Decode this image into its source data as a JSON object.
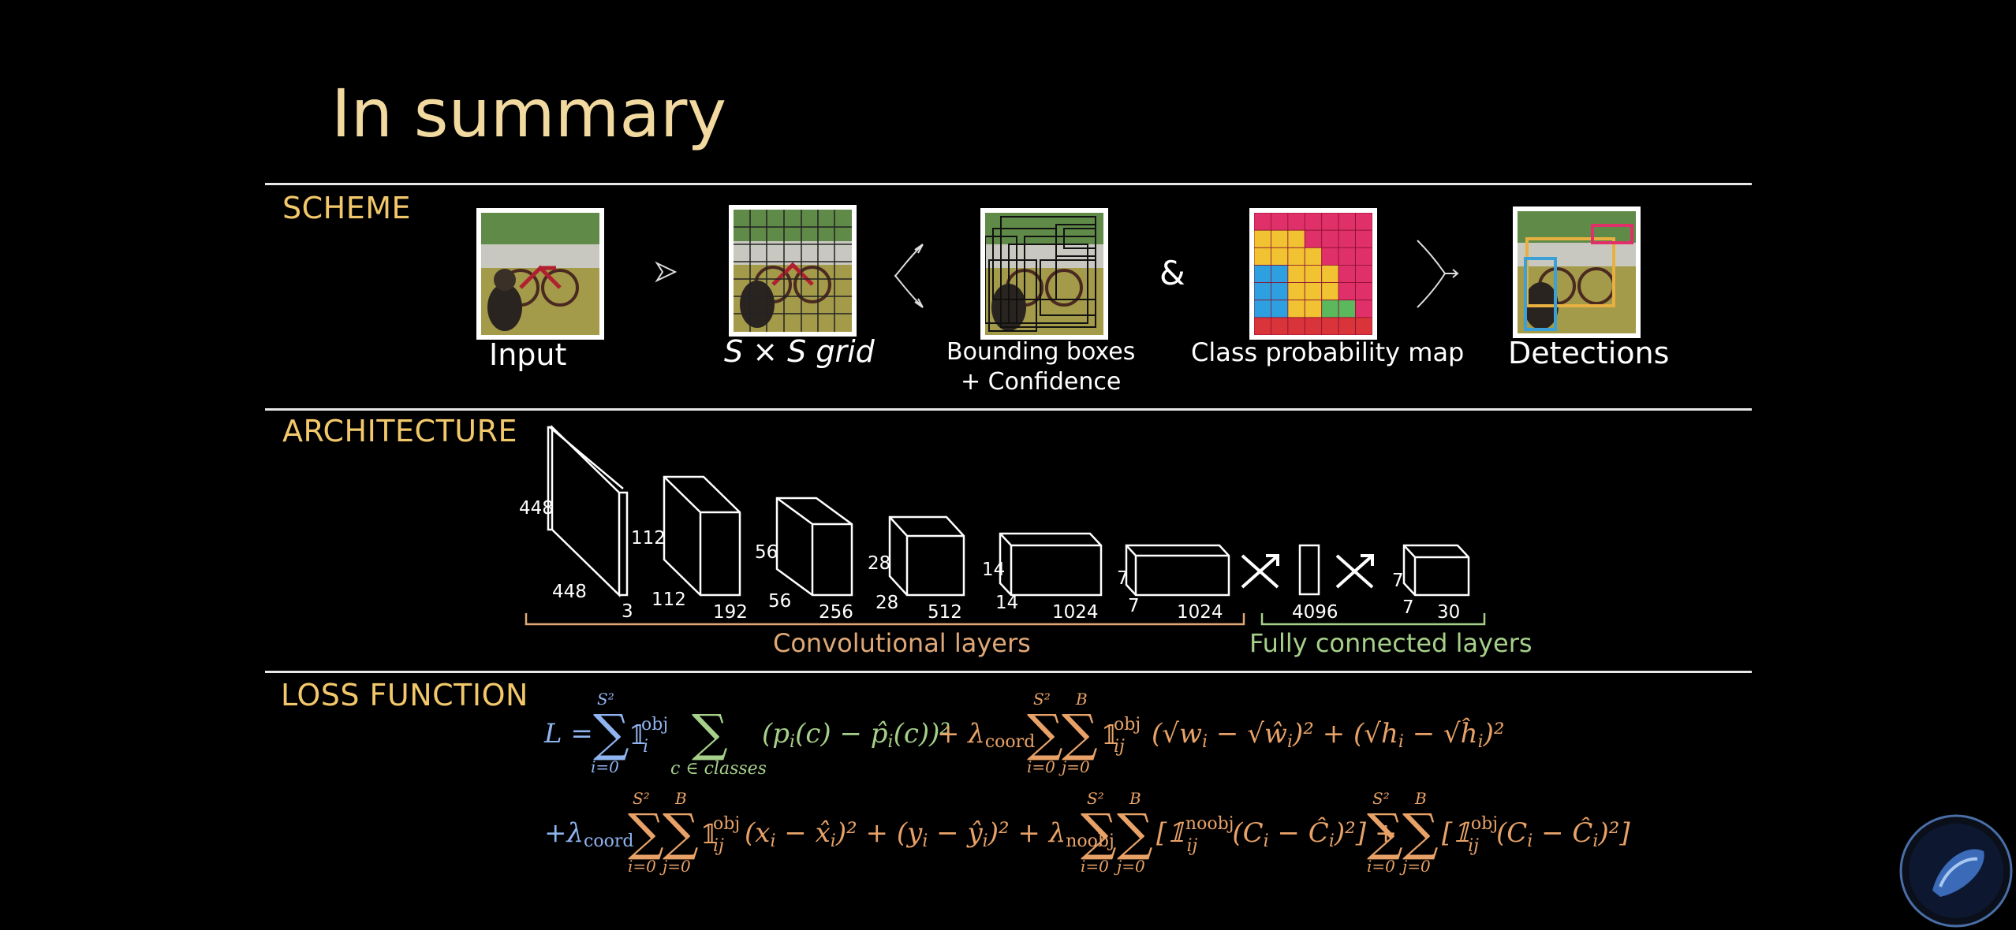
{
  "title": "In summary",
  "sections": {
    "scheme": "SCHEME",
    "architecture": "ARCHITECTURE",
    "loss": "LOSS FUNCTION"
  },
  "scheme": {
    "captions": {
      "input": "Input",
      "grid": "S × S grid",
      "boxes_line1": "Bounding boxes",
      "boxes_line2": "+ Confidence",
      "ampersand": "&",
      "classmap": "Class probability map",
      "detections": "Detections"
    },
    "colors": {
      "pink": "#e0306a",
      "yellow": "#f1c232",
      "blue": "#2ea0e0",
      "green": "#5cb85c",
      "red": "#d9343a"
    }
  },
  "architecture": {
    "layers": [
      {
        "h": "448",
        "w": "448",
        "d": "3"
      },
      {
        "h": "112",
        "w": "112",
        "d": "192"
      },
      {
        "h": "56",
        "w": "56",
        "d": "256"
      },
      {
        "h": "28",
        "w": "28",
        "d": "512"
      },
      {
        "h": "14",
        "w": "14",
        "d": "1024"
      },
      {
        "h": "7",
        "w": "7",
        "d": "1024"
      }
    ],
    "fc1": "4096",
    "out": {
      "h": "7",
      "w": "7",
      "d": "30"
    },
    "conv_label": "Convolutional layers",
    "fc_label": "Fully connected layers",
    "conv_color": "#e0a878",
    "fc_color": "#a6d08a"
  },
  "loss": {
    "colors": {
      "blue": "#8fb4f0",
      "green": "#a6d08a",
      "orange": "#e8a268"
    }
  }
}
